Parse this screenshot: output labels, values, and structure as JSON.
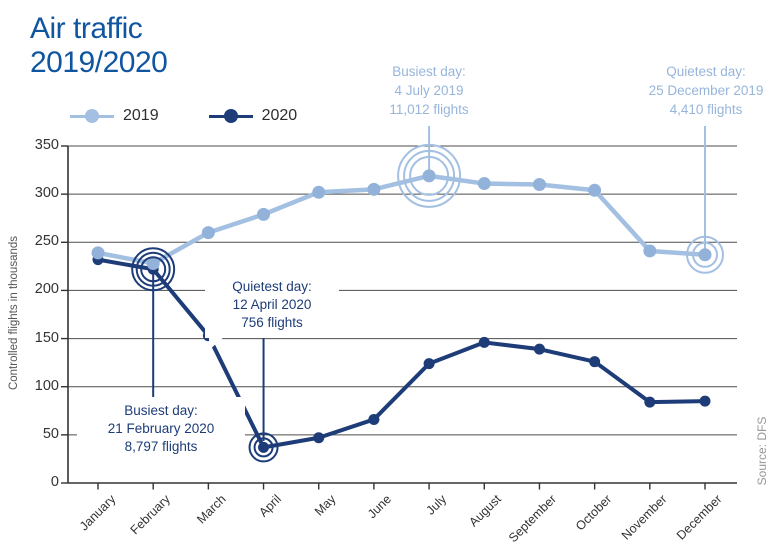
{
  "title": "Air traffic\n2019/2020",
  "legend": {
    "items": [
      {
        "label": "2019",
        "color": "#a3bfe1"
      },
      {
        "label": "2020",
        "color": "#1d3c78"
      }
    ]
  },
  "source": "Source: DFS",
  "colors": {
    "title": "#10559f",
    "series_2019": "#a3bfe1",
    "series_2019_marker": "#92b2d9",
    "series_2020": "#1d3c78",
    "annotation_text_light": "#97b5db",
    "axis_text": "#333333",
    "grid": "#4d4d4d",
    "source_text": "#979797"
  },
  "chart_data": {
    "type": "line",
    "title": "Air traffic 2019/2020",
    "categories": [
      "January",
      "February",
      "March",
      "April",
      "May",
      "June",
      "July",
      "August",
      "September",
      "October",
      "November",
      "December"
    ],
    "series": [
      {
        "name": "2019",
        "color": "#a3bfe1",
        "values": [
          239,
          228,
          260,
          279,
          302,
          305,
          319,
          311,
          310,
          304,
          241,
          237
        ]
      },
      {
        "name": "2020",
        "color": "#1d3c78",
        "values": [
          232,
          222,
          153,
          37,
          47,
          66,
          124,
          146,
          139,
          126,
          84,
          85
        ]
      }
    ],
    "xlabel": "",
    "ylabel": "Controlled flights in thousands",
    "ylim": [
      0,
      350
    ],
    "yticks": [
      0,
      50,
      100,
      150,
      200,
      250,
      300,
      350
    ],
    "grid": true,
    "legend_position": "top-left",
    "annotations": [
      {
        "id": "busiest-2019",
        "series": "2019",
        "month": "July",
        "style": "text-light",
        "lines": [
          "Busiest day:",
          "4 July 2019",
          "11,012 flights"
        ]
      },
      {
        "id": "quietest-2019",
        "series": "2019",
        "month": "December",
        "style": "text-light",
        "lines": [
          "Quietest day:",
          "25 December 2019",
          "4,410 flights"
        ]
      },
      {
        "id": "busiest-2020",
        "series": "2020",
        "month": "February",
        "style": "box-dark",
        "lines": [
          "Busiest day:",
          "21 February 2020",
          "8,797 flights"
        ]
      },
      {
        "id": "quietest-2020",
        "series": "2020",
        "month": "April",
        "style": "box-dark",
        "lines": [
          "Quietest day:",
          "12 April 2020",
          "756 flights"
        ]
      }
    ]
  }
}
